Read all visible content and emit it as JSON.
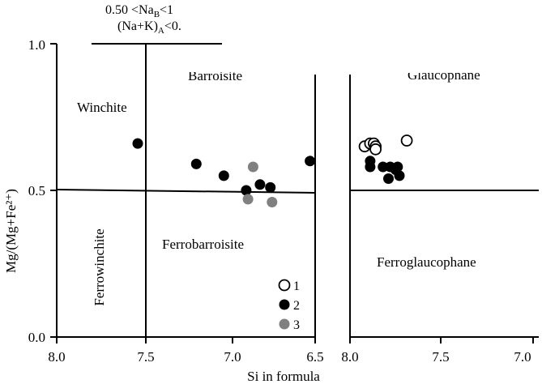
{
  "chart_data": {
    "type": "scatter",
    "header": {
      "line1": "0.50 <Na",
      "sub1": "B",
      "tail1": "<1",
      "line2": "(Na+K)",
      "sub2": "A",
      "tail2": "<0."
    },
    "xlabel": "Si in formula",
    "ylabel": "Mg/(Mg+Fe²⁺)",
    "ylim": [
      0.0,
      1.0
    ],
    "y_ticks": [
      "0.0",
      "0.5",
      "1.0"
    ],
    "grid": false,
    "panels": [
      {
        "xlim": [
          8.0,
          6.5
        ],
        "x_ticks": [
          "8.0",
          "7.5",
          "7.0",
          "6.5"
        ],
        "field_labels": [
          "Winchite",
          "Barroisite",
          "Ferrowinchite",
          "Ferrobarroisite"
        ],
        "series": [
          {
            "name": "2",
            "style": "filled-black",
            "points": [
              [
                7.53,
                0.66
              ],
              [
                7.19,
                0.59
              ],
              [
                7.03,
                0.55
              ],
              [
                6.9,
                0.5
              ],
              [
                6.82,
                0.52
              ],
              [
                6.76,
                0.51
              ],
              [
                6.53,
                0.6
              ]
            ]
          },
          {
            "name": "3",
            "style": "filled-gray",
            "points": [
              [
                6.86,
                0.58
              ],
              [
                6.89,
                0.47
              ],
              [
                6.75,
                0.46
              ]
            ]
          }
        ]
      },
      {
        "xlim": [
          8.0,
          7.0
        ],
        "x_ticks": [
          "8.0",
          "7.5",
          "7.0"
        ],
        "field_labels": [
          "Glaucophane",
          "Ferroglaucophane"
        ],
        "series": [
          {
            "name": "1",
            "style": "open",
            "points": [
              [
                7.92,
                0.65
              ],
              [
                7.89,
                0.66
              ],
              [
                7.87,
                0.66
              ],
              [
                7.86,
                0.65
              ],
              [
                7.86,
                0.64
              ],
              [
                7.69,
                0.67
              ]
            ]
          },
          {
            "name": "2",
            "style": "filled-black",
            "points": [
              [
                7.89,
                0.6
              ],
              [
                7.89,
                0.58
              ],
              [
                7.82,
                0.58
              ],
              [
                7.79,
                0.54
              ],
              [
                7.78,
                0.58
              ],
              [
                7.75,
                0.57
              ],
              [
                7.74,
                0.58
              ],
              [
                7.73,
                0.55
              ]
            ]
          }
        ]
      }
    ],
    "legend": [
      "1",
      "2",
      "3"
    ],
    "legend_position": "bottom-right of left panel"
  }
}
